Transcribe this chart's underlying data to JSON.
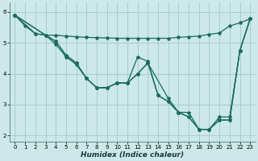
{
  "xlabel": "Humidex (Indice chaleur)",
  "bg_color": "#cce8e8",
  "grid_color": "#aacccc",
  "line_color": "#1a6b5e",
  "xlim": [
    -0.5,
    23.5
  ],
  "ylim": [
    1.8,
    6.3
  ],
  "yticks": [
    2,
    3,
    4,
    5,
    6
  ],
  "xticks": [
    0,
    1,
    2,
    3,
    4,
    5,
    6,
    7,
    8,
    9,
    10,
    11,
    12,
    13,
    14,
    15,
    16,
    17,
    18,
    19,
    20,
    21,
    22,
    23
  ],
  "line1_x": [
    0,
    1,
    2,
    3,
    4,
    5,
    6,
    7,
    8,
    9,
    10,
    11,
    12,
    13,
    14,
    15,
    16,
    17,
    18,
    19,
    20,
    21,
    22,
    23
  ],
  "line1_y": [
    5.9,
    5.55,
    5.3,
    5.25,
    5.25,
    5.22,
    5.2,
    5.18,
    5.17,
    5.16,
    5.15,
    5.15,
    5.15,
    5.15,
    5.15,
    5.15,
    5.18,
    5.2,
    5.22,
    5.28,
    5.32,
    5.55,
    5.65,
    5.78
  ],
  "line2_x": [
    0,
    2,
    3,
    4,
    5,
    6,
    7,
    8,
    9,
    10,
    11,
    12,
    13,
    14,
    15,
    16,
    17,
    18,
    19,
    20,
    21,
    22,
    23
  ],
  "line2_y": [
    5.9,
    5.3,
    5.25,
    5.05,
    4.6,
    4.35,
    3.85,
    3.55,
    3.55,
    3.7,
    3.7,
    4.55,
    4.4,
    3.3,
    3.1,
    2.75,
    2.75,
    2.2,
    2.2,
    2.6,
    2.6,
    4.75,
    5.78
  ],
  "line3_x": [
    0,
    3,
    4,
    5,
    6,
    7,
    8,
    9,
    10,
    11,
    12,
    13,
    15,
    16,
    17,
    18,
    19,
    20,
    21,
    22,
    23
  ],
  "line3_y": [
    5.9,
    5.25,
    4.95,
    4.55,
    4.3,
    3.85,
    3.55,
    3.55,
    3.7,
    3.7,
    4.0,
    4.35,
    3.2,
    2.75,
    2.6,
    2.2,
    2.2,
    2.5,
    2.5,
    4.75,
    5.78
  ],
  "line4_x": [
    0,
    3,
    4,
    5,
    6,
    7,
    8,
    9,
    10,
    11,
    12,
    13,
    14,
    15,
    16,
    17,
    18,
    19,
    20,
    21,
    22,
    23
  ],
  "line4_y": [
    5.9,
    5.25,
    5.05,
    4.6,
    4.35,
    3.85,
    3.55,
    3.55,
    3.7,
    3.7,
    4.0,
    4.35,
    3.3,
    3.1,
    2.75,
    2.6,
    2.2,
    2.2,
    2.5,
    2.5,
    4.75,
    5.78
  ]
}
